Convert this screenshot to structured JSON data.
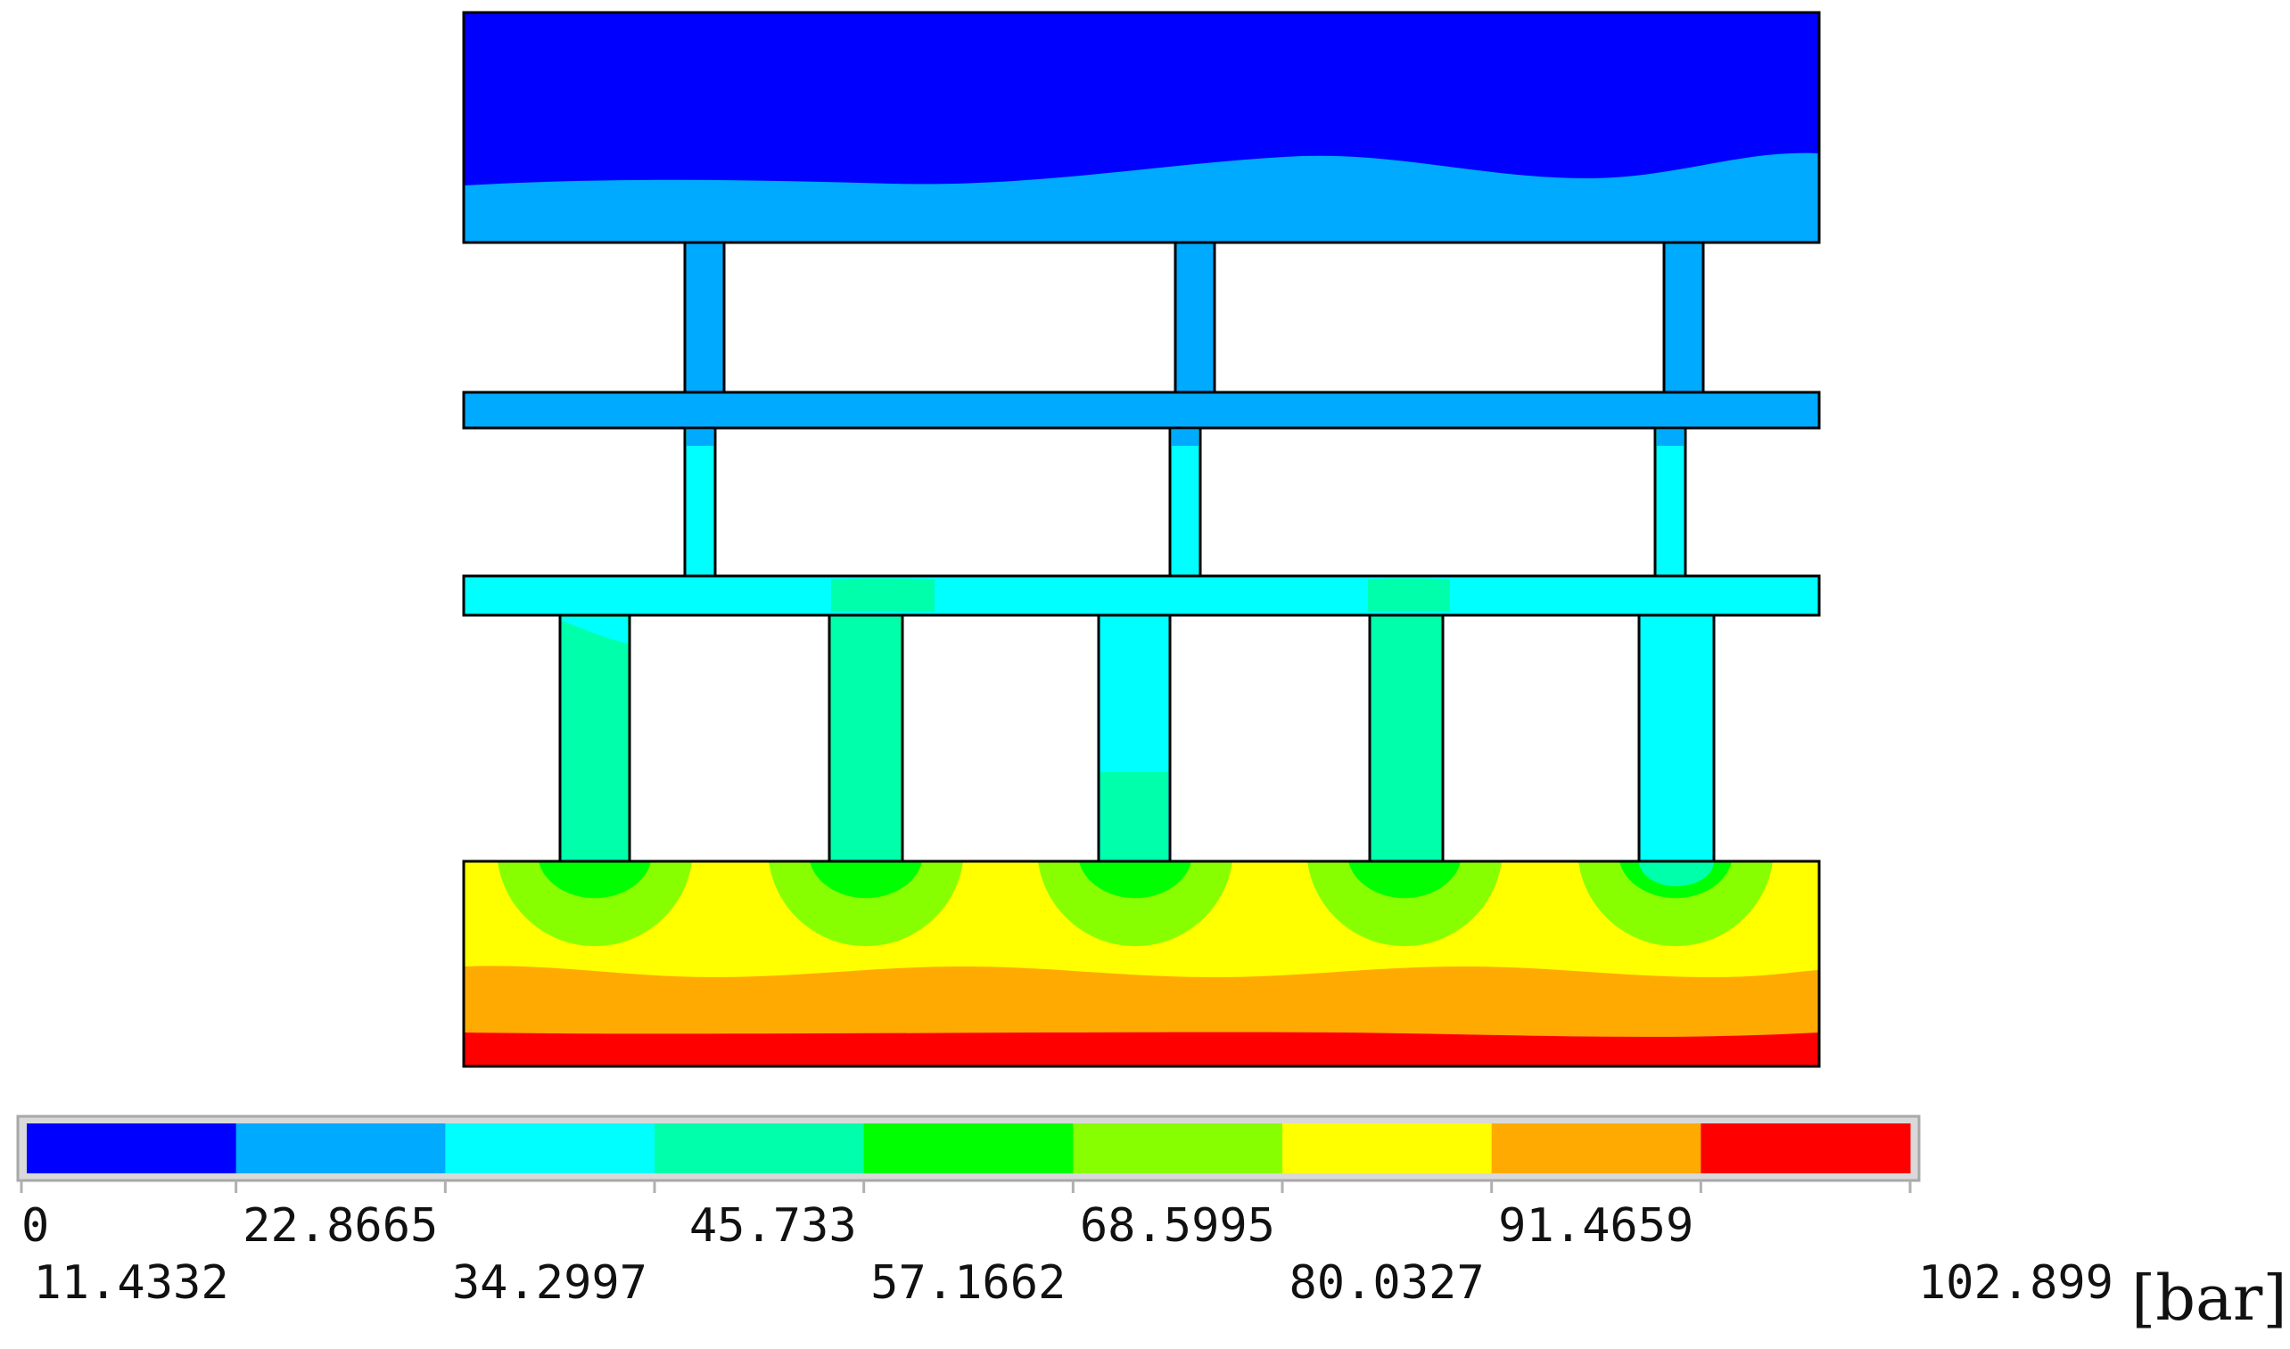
{
  "legend": {
    "unit": "[bar]",
    "levels": [
      "0",
      "11.4332",
      "22.8665",
      "34.2997",
      "45.733",
      "57.1662",
      "68.5995",
      "80.0327",
      "91.4659",
      "102.899"
    ],
    "bands": [
      "#0000ff",
      "#00aaff",
      "#00ffff",
      "#00ffaa",
      "#00ff00",
      "#88ff00",
      "#ffff00",
      "#ffaa00",
      "#ff0000"
    ]
  },
  "colors": {
    "band_0_11": "#0000ff",
    "band_11_23": "#00aaff",
    "band_23_34": "#00ffff",
    "band_34_46": "#00ffaa",
    "band_46_57": "#00ff00",
    "band_57_69": "#88ff00",
    "band_69_80": "#ffff00",
    "band_80_91": "#ffaa00",
    "band_91_103": "#ff0000"
  }
}
